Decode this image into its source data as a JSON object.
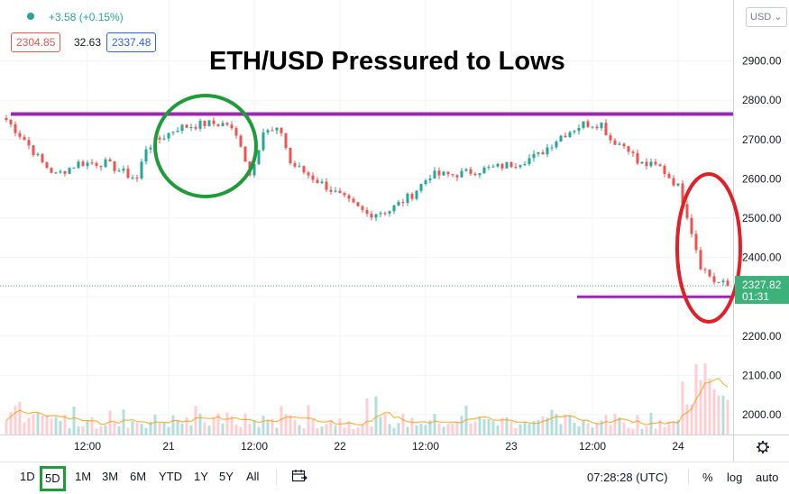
{
  "header": {
    "change": "+3.58 (+0.15%)",
    "bid": "2304.85",
    "spread": "32.63",
    "ask": "2337.48",
    "currency": "USD"
  },
  "toolbar": {
    "timeframes": [
      "1D",
      "5D",
      "1M",
      "3M",
      "6M",
      "YTD",
      "1Y",
      "5Y",
      "All"
    ],
    "active_timeframe": "5D",
    "clock": "07:28:28 (UTC)",
    "options": [
      "%",
      "log",
      "auto"
    ],
    "calendar_icon": "calendar-range-icon",
    "settings_icon": "gear-icon"
  },
  "colors": {
    "up": "#26a69a",
    "down": "#ef5350",
    "level_line": "#9c27b0",
    "green_circle": "#1e9c3a",
    "red_circle": "#e01f26",
    "price_label": "#3cb27a"
  },
  "chart_data": {
    "type": "candlestick",
    "title": "ETH/USD Pressured to Lows",
    "x_tick_labels": [
      "12:00",
      "21",
      "12:00",
      "22",
      "12:00",
      "23",
      "12:00",
      "24"
    ],
    "ylim": [
      1950,
      3000
    ],
    "y_ticks": [
      2000,
      2100,
      2200,
      2300,
      2400,
      2500,
      2600,
      2700,
      2800,
      2900
    ],
    "y_tick_labels": [
      "2000.00",
      "2100.00",
      "2200.00",
      "2300.00",
      "2400.00",
      "2500.00",
      "2600.00",
      "2700.00",
      "2800.00",
      "2900.00"
    ],
    "last_price": "2327.82",
    "countdown": "01:31",
    "approx_close_path": [
      [
        0,
        2750
      ],
      [
        4,
        2700
      ],
      [
        8,
        2640
      ],
      [
        11,
        2610
      ],
      [
        16,
        2640
      ],
      [
        22,
        2640
      ],
      [
        27,
        2610
      ],
      [
        29,
        2600
      ],
      [
        31,
        2680
      ],
      [
        38,
        2730
      ],
      [
        44,
        2740
      ],
      [
        49,
        2740
      ],
      [
        52,
        2690
      ],
      [
        54,
        2610
      ],
      [
        57,
        2720
      ],
      [
        61,
        2720
      ],
      [
        63,
        2640
      ],
      [
        67,
        2610
      ],
      [
        71,
        2580
      ],
      [
        76,
        2540
      ],
      [
        80,
        2510
      ],
      [
        85,
        2520
      ],
      [
        90,
        2560
      ],
      [
        94,
        2610
      ],
      [
        99,
        2610
      ],
      [
        104,
        2620
      ],
      [
        109,
        2630
      ],
      [
        113,
        2640
      ],
      [
        118,
        2660
      ],
      [
        123,
        2710
      ],
      [
        128,
        2740
      ],
      [
        132,
        2740
      ],
      [
        134,
        2700
      ],
      [
        138,
        2680
      ],
      [
        140,
        2640
      ],
      [
        145,
        2630
      ],
      [
        149,
        2580
      ],
      [
        151,
        2510
      ],
      [
        154,
        2380
      ],
      [
        157,
        2340
      ],
      [
        160,
        2327.82
      ]
    ],
    "horizontal_levels": [
      2765,
      2300
    ],
    "volume_peaks_idx": [
      153,
      154,
      155,
      156
    ]
  }
}
